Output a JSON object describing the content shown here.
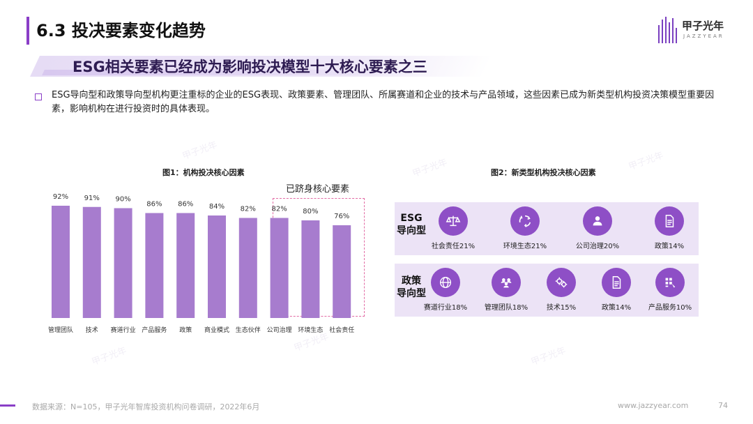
{
  "header": {
    "section_title": "6.3 投决要素变化趋势",
    "logo_text": "甲子光年",
    "logo_sub": "JAZZYEAR"
  },
  "subtitle": "ESG相关要素已经成为影响投决模型十大核心要素之三",
  "body_text": "ESG导向型和政策导向型机构更注重标的企业的ESG表现、政策要素、管理团队、所属赛道和企业的技术与产品领域，这些因素已成为新类型机构投资决策模型重要因素，影响机构在进行投资时的具体表现。",
  "figure1": {
    "title": "图1：机构投决核心因素",
    "highlight_label": "已跻身核心要素"
  },
  "chart_data": {
    "type": "bar",
    "categories": [
      "管理团队",
      "技术",
      "赛道行业",
      "产品服务",
      "政策",
      "商业模式",
      "生态伙伴",
      "公司治理",
      "环境生态",
      "社会责任"
    ],
    "values": [
      92,
      91,
      90,
      86,
      86,
      84,
      82,
      82,
      80,
      76
    ],
    "data_labels": [
      "92%",
      "91%",
      "90%",
      "86%",
      "86%",
      "84%",
      "82%",
      "82%",
      "80%",
      "76%"
    ],
    "unit": "%",
    "highlighted_categories": [
      "公司治理",
      "环境生态",
      "社会责任"
    ],
    "bar_color": "#a77cce"
  },
  "figure2": {
    "title": "图2：新类型机构投决核心因素",
    "esg": {
      "label_line1": "ESG",
      "label_line2": "导向型",
      "items": [
        {
          "label": "社会责任21%",
          "icon": "balance-scale-icon"
        },
        {
          "label": "环境生态21%",
          "icon": "recycle-icon"
        },
        {
          "label": "公司治理20%",
          "icon": "people-icon"
        },
        {
          "label": "政策14%",
          "icon": "document-icon"
        }
      ]
    },
    "policy": {
      "label_line1": "政策",
      "label_line2": "导向型",
      "items": [
        {
          "label": "赛道行业18%",
          "icon": "globe-icon"
        },
        {
          "label": "管理团队18%",
          "icon": "team-icon"
        },
        {
          "label": "技术15%",
          "icon": "gears-icon"
        },
        {
          "label": "政策14%",
          "icon": "document-icon"
        },
        {
          "label": "产品服务10%",
          "icon": "product-grid-icon"
        }
      ]
    }
  },
  "footer": {
    "source": "数据来源：N=105，甲子光年智库投资机构问卷调研，2022年6月",
    "url": "www.jazzyear.com",
    "page": "74"
  },
  "colors": {
    "accent": "#8a3ec7",
    "bar": "#a77cce",
    "icon_circle": "#8e4fc6",
    "panel": "#ece3f6",
    "highlight_border": "#e26aa3"
  }
}
